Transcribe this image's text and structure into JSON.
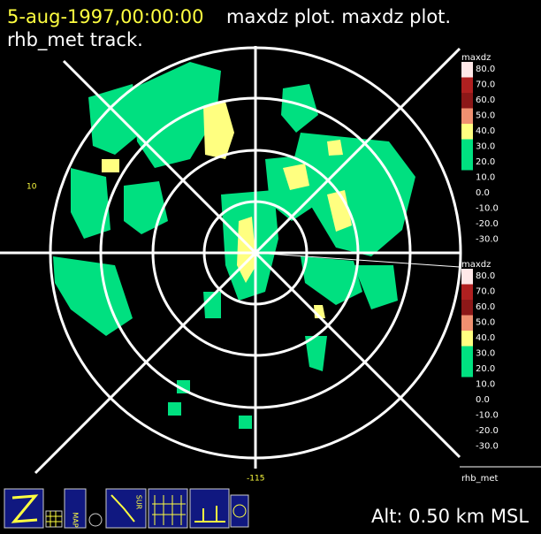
{
  "header": {
    "date": "5-aug-1997,00:00:00",
    "plot": "maxdz plot.  maxdz plot.",
    "track": "rhb_met track."
  },
  "axis_labels": {
    "left": "10",
    "bottom": "-115"
  },
  "legends": [
    {
      "title": "maxdz",
      "labels": [
        "80.0",
        "70.0",
        "60.0",
        "50.0",
        "40.0",
        "30.0",
        "20.0",
        "10.0",
        "0.0",
        "-10.0",
        "-20.0",
        "-30.0"
      ],
      "colors": [
        "#ffe8e8",
        "#b02020",
        "#8c1818",
        "#f09070",
        "#ffff80",
        "#00e080",
        "#00e080"
      ]
    },
    {
      "title": "maxdz",
      "labels": [
        "80.0",
        "70.0",
        "60.0",
        "50.0",
        "40.0",
        "30.0",
        "20.0",
        "10.0",
        "0.0",
        "-10.0",
        "-20.0",
        "-30.0"
      ],
      "colors": [
        "#ffe8e8",
        "#b02020",
        "#8c1818",
        "#f09070",
        "#ffff80",
        "#00e080",
        "#00e080"
      ]
    }
  ],
  "platform": "rhb_met",
  "toolbar": {
    "map": "MAP",
    "sur": "SUR"
  },
  "altitude": "Alt: 0.50 km MSL"
}
